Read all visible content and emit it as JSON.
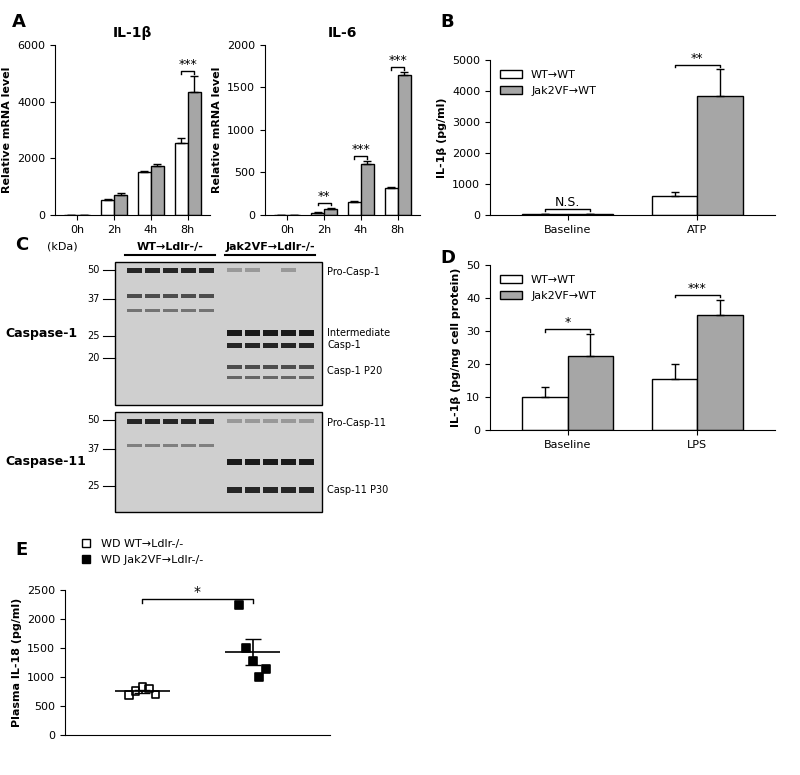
{
  "panel_labels": [
    "A",
    "B",
    "C",
    "D",
    "E"
  ],
  "chart_data": [
    {
      "type": "bar",
      "title": "IL-1β",
      "ylabel": "Relative mRNA level",
      "categories": [
        "0h",
        "2h",
        "4h",
        "8h"
      ],
      "series": [
        {
          "color": "#ffffff",
          "values": [
            0,
            520,
            1500,
            2550
          ],
          "errors": [
            0,
            30,
            50,
            150
          ]
        },
        {
          "color": "#a6a6a6",
          "values": [
            0,
            720,
            1730,
            4350
          ],
          "errors": [
            0,
            60,
            60,
            550
          ]
        }
      ],
      "ylim": [
        0,
        6000
      ],
      "yticks": [
        0,
        2000,
        4000,
        6000
      ],
      "annotations": [
        {
          "category": "8h",
          "text": "***"
        }
      ]
    },
    {
      "type": "bar",
      "title": "IL-6",
      "ylabel": "Relative mRNA level",
      "categories": [
        "0h",
        "2h",
        "4h",
        "8h"
      ],
      "series": [
        {
          "color": "#ffffff",
          "values": [
            0,
            25,
            150,
            320
          ],
          "errors": [
            0,
            5,
            15,
            5
          ]
        },
        {
          "color": "#a6a6a6",
          "values": [
            0,
            75,
            600,
            1650
          ],
          "errors": [
            0,
            10,
            30,
            30
          ]
        }
      ],
      "ylim": [
        0,
        2000
      ],
      "yticks": [
        0,
        500,
        1000,
        1500,
        2000
      ],
      "annotations": [
        {
          "category": "2h",
          "text": "**"
        },
        {
          "category": "4h",
          "text": "***"
        },
        {
          "category": "8h",
          "text": "***"
        }
      ]
    },
    {
      "type": "bar",
      "ylabel": "IL-1β (pg/ml)",
      "categories": [
        "Baseline",
        "ATP"
      ],
      "series": [
        {
          "name": "WT→WT",
          "color": "#ffffff",
          "values": [
            20,
            600
          ],
          "errors": [
            5,
            150
          ]
        },
        {
          "name": "Jak2VF→WT",
          "color": "#a6a6a6",
          "values": [
            30,
            3850
          ],
          "errors": [
            10,
            850
          ]
        }
      ],
      "ylim": [
        0,
        5000
      ],
      "yticks": [
        0,
        1000,
        2000,
        3000,
        4000,
        5000
      ],
      "legend": "upper left",
      "annotations": [
        {
          "category": "Baseline",
          "text": "N.S."
        },
        {
          "category": "ATP",
          "text": "**"
        }
      ]
    },
    {
      "type": "bar",
      "ylabel": "IL-1β (pg/mg cell protein)",
      "categories": [
        "Baseline",
        "LPS"
      ],
      "series": [
        {
          "name": "WT→WT",
          "color": "#ffffff",
          "values": [
            10,
            15.5
          ],
          "errors": [
            3,
            4.5
          ]
        },
        {
          "name": "Jak2VF→WT",
          "color": "#a6a6a6",
          "values": [
            22.5,
            35
          ],
          "errors": [
            6.5,
            4.5
          ]
        }
      ],
      "ylim": [
        0,
        50
      ],
      "yticks": [
        0,
        10,
        20,
        30,
        40,
        50
      ],
      "legend": "upper left",
      "annotations": [
        {
          "category": "Baseline",
          "text": "*"
        },
        {
          "category": "LPS",
          "text": "***"
        }
      ]
    },
    {
      "type": "scatter",
      "ylabel": "Plasma IL-18 (pg/ml)",
      "series": [
        {
          "name": "WD WT→Ldlr-/-",
          "color": "#000000",
          "marker": "open square",
          "values": [
            690,
            760,
            830,
            800,
            700
          ],
          "mean": 756,
          "sem": 27
        },
        {
          "name": "WD Jak2VF→Ldlr-/-",
          "color": "#000000",
          "marker": "square",
          "values": [
            2250,
            1500,
            1280,
            1000,
            1130
          ],
          "mean": 1432,
          "sem": 225
        }
      ],
      "ylim": [
        0,
        2500
      ],
      "yticks": [
        0,
        500,
        1000,
        1500,
        2000,
        2500
      ],
      "tick_labels": "y",
      "legend": "upper left",
      "annotations": [
        {
          "text": "*"
        }
      ]
    }
  ],
  "blot": {
    "unit_label": "(kDa)",
    "groups": [
      "WT→Ldlr-/-",
      "Jak2VF→Ldlr-/-"
    ],
    "panels": [
      {
        "label": "Caspase-1",
        "markers": [
          50,
          37,
          25,
          20
        ],
        "bands": [
          "Pro-Casp-1",
          "Intermediate\nCasp-1",
          "Casp-1 P20"
        ]
      },
      {
        "label": "Caspase-11",
        "markers": [
          50,
          37,
          25
        ],
        "bands": [
          "Pro-Casp-11",
          "Casp-11 P30"
        ]
      }
    ]
  }
}
